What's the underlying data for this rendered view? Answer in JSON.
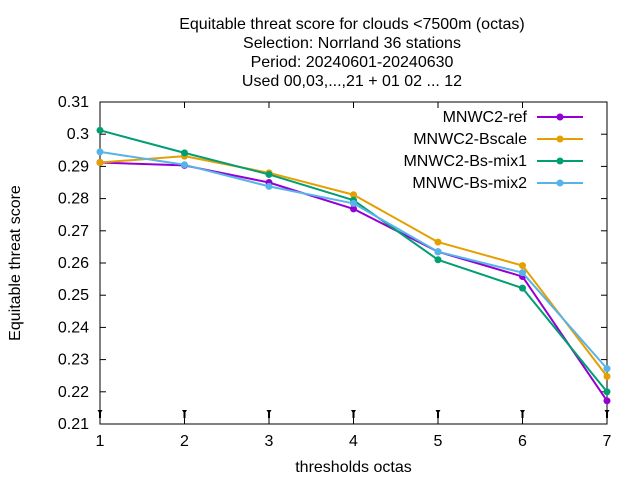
{
  "chart_data": {
    "type": "line",
    "title_lines": [
      "Equitable threat score  for clouds <7500m (octas)",
      "Selection: Norrland     36 stations",
      "Period: 20240601-20240630",
      "Used 00,03,...,21 + 01 02 ... 12"
    ],
    "xlabel": "thresholds octas",
    "ylabel": "Equitable threat score",
    "x": [
      1,
      2,
      3,
      4,
      5,
      6,
      7
    ],
    "x_ticks": [
      "1",
      "2",
      "3",
      "4",
      "5",
      "6",
      "7"
    ],
    "xlim": [
      1,
      7
    ],
    "ylim": [
      0.21,
      0.31
    ],
    "y_ticks": [
      "0.21",
      "0.22",
      "0.23",
      "0.24",
      "0.25",
      "0.26",
      "0.27",
      "0.28",
      "0.29",
      "0.3",
      "0.31"
    ],
    "grid": false,
    "legend_position": "top-right",
    "series": [
      {
        "name": "MNWC2-ref",
        "color": "#9400d3",
        "values": [
          0.2912,
          0.2903,
          0.285,
          0.2768,
          0.2635,
          0.2558,
          0.2172
        ]
      },
      {
        "name": "MNWC2-Bscale",
        "color": "#e69f00",
        "values": [
          0.2912,
          0.2932,
          0.288,
          0.2812,
          0.2665,
          0.2592,
          0.2248
        ]
      },
      {
        "name": "MNWC2-Bs-mix1",
        "color": "#009e73",
        "values": [
          0.3012,
          0.2942,
          0.2875,
          0.2795,
          0.261,
          0.2522,
          0.22
        ]
      },
      {
        "name": "MNWC-Bs-mix2",
        "color": "#56b4e9",
        "values": [
          0.2945,
          0.2905,
          0.2838,
          0.2785,
          0.2635,
          0.257,
          0.2272
        ]
      }
    ]
  }
}
